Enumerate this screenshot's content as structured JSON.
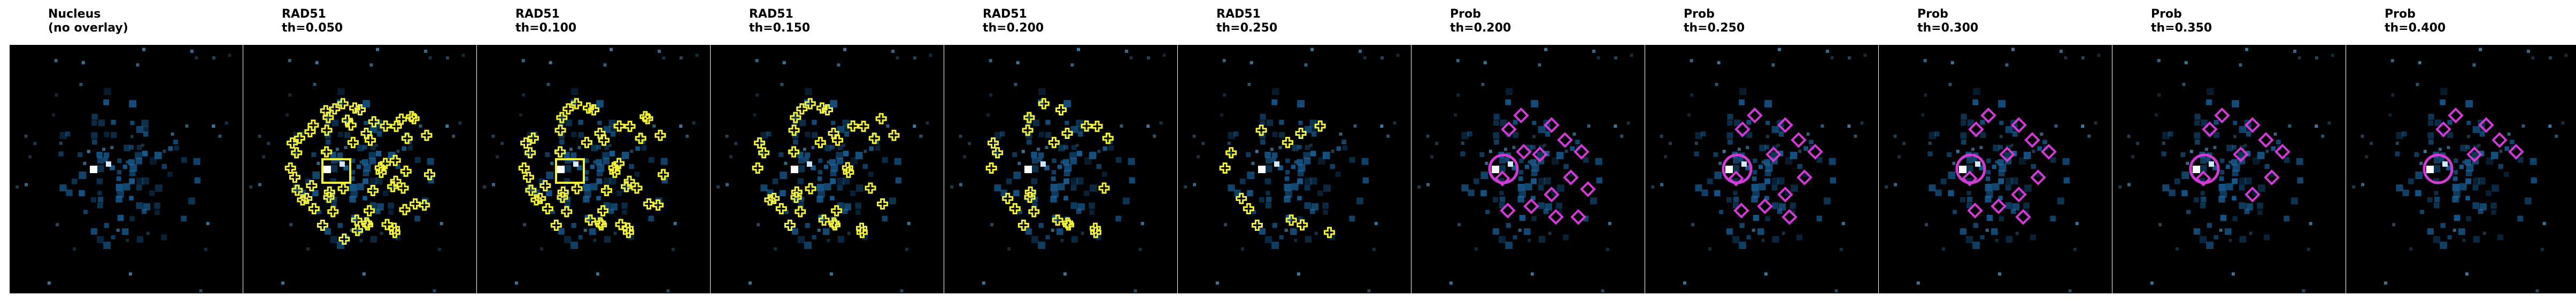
{
  "panels": [
    {
      "line1": "Nucleus",
      "line2": "(no overlay)",
      "overlay": "none"
    },
    {
      "line1": "RAD51",
      "line2": "th=0.050",
      "overlay": "rad51",
      "level": 5
    },
    {
      "line1": "RAD51",
      "line2": "th=0.100",
      "overlay": "rad51",
      "level": 4
    },
    {
      "line1": "RAD51",
      "line2": "th=0.150",
      "overlay": "rad51",
      "level": 3
    },
    {
      "line1": "RAD51",
      "line2": "th=0.200",
      "overlay": "rad51",
      "level": 2
    },
    {
      "line1": "RAD51",
      "line2": "th=0.250",
      "overlay": "rad51",
      "level": 1
    },
    {
      "line1": "Prob",
      "line2": "th=0.200",
      "overlay": "prob",
      "level": 5
    },
    {
      "line1": "Prob",
      "line2": "th=0.250",
      "overlay": "prob",
      "level": 4
    },
    {
      "line1": "Prob",
      "line2": "th=0.300",
      "overlay": "prob",
      "level": 4
    },
    {
      "line1": "Prob",
      "line2": "th=0.350",
      "overlay": "prob",
      "level": 3
    },
    {
      "line1": "Prob",
      "line2": "th=0.400",
      "overlay": "prob",
      "level": 2
    }
  ],
  "colors": {
    "background": "#000000",
    "nucleus": "#1a6aa8",
    "nucleus_bright": "#5fb0e6",
    "rad51_overlay": "#f2f23a",
    "prob_overlay": "#d33ad6"
  }
}
